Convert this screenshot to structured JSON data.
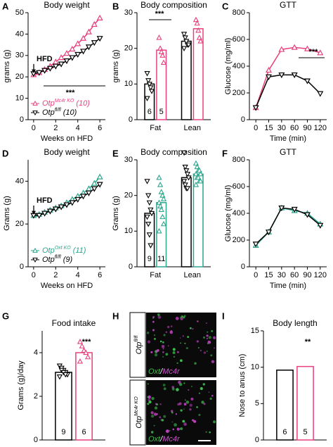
{
  "chart_data": [
    {
      "panel": "A",
      "type": "line",
      "title": "Body weight",
      "xlabel": "Weeks on HFD",
      "ylabel": "grams (g)",
      "x": [
        0,
        0.5,
        1,
        1.5,
        2,
        2.5,
        3,
        3.5,
        4,
        4.5,
        5,
        5.5,
        6
      ],
      "xlim": [
        -0.5,
        6.5
      ],
      "xticks": [
        0,
        2,
        4,
        6
      ],
      "ylim": [
        0,
        50
      ],
      "yticks": [
        0,
        10,
        20,
        30,
        40,
        50
      ],
      "series": [
        {
          "name": "Otp",
          "name_sup": "Mc4r KO",
          "name_suffix": "(10)",
          "color": "#e8407f",
          "marker": "up",
          "values": [
            21,
            22,
            23.5,
            25,
            27,
            29,
            31,
            33,
            35.5,
            38,
            41,
            44.5,
            47.5
          ]
        },
        {
          "name": "Otp",
          "name_sup": "fl/fl",
          "name_suffix": "(10)",
          "color": "#000000",
          "marker": "down",
          "values": [
            21.5,
            22,
            23,
            24,
            25,
            26,
            27.5,
            29,
            30.5,
            32,
            34,
            36,
            38
          ]
        }
      ],
      "annotations": [
        {
          "text": "HFD",
          "color": "#000000"
        },
        {
          "text": "***",
          "color": "#e8407f"
        }
      ]
    },
    {
      "panel": "B",
      "type": "bar",
      "title": "Body composition",
      "ylabel": "grams (g)",
      "categories": [
        "Fat",
        "Lean"
      ],
      "ylim": [
        0,
        30
      ],
      "yticks": [
        0,
        10,
        20,
        30
      ],
      "series": [
        {
          "color": "#000000",
          "marker": "down",
          "n": 6,
          "values": [
            10,
            22
          ],
          "points": [
            [
              13,
              11,
              10,
              9,
              8,
              6
            ],
            [
              24,
              23,
              22,
              21,
              21,
              20
            ]
          ]
        },
        {
          "color": "#e8407f",
          "marker": "up",
          "n": 5,
          "values": [
            19.5,
            25.5
          ],
          "points": [
            [
              23,
              20,
              19,
              18,
              16
            ],
            [
              28,
              27,
              25,
              23,
              22
            ]
          ]
        }
      ],
      "annotations": [
        {
          "text": "***",
          "color": "#e8407f"
        }
      ]
    },
    {
      "panel": "C",
      "type": "line",
      "title": "GTT",
      "xlabel": "Time (min)",
      "ylabel": "Glucose (mg/ml)",
      "categories": [
        "0",
        "15",
        "30",
        "60",
        "90",
        "120"
      ],
      "ylim": [
        0,
        800
      ],
      "yticks": [
        0,
        200,
        400,
        600,
        800
      ],
      "series": [
        {
          "color": "#e8407f",
          "marker": "up",
          "values": [
            90,
            370,
            525,
            540,
            530,
            500
          ]
        },
        {
          "color": "#000000",
          "marker": "down",
          "values": [
            90,
            320,
            335,
            335,
            290,
            195
          ]
        }
      ],
      "annotations": [
        {
          "text": "***",
          "color": "#e8407f"
        }
      ]
    },
    {
      "panel": "D",
      "type": "line",
      "title": "Body weight",
      "xlabel": "Weeks on HFD",
      "ylabel": "Grams (g)",
      "x": [
        0,
        0.5,
        1,
        1.5,
        2,
        2.5,
        3,
        3.5,
        4,
        4.5,
        5,
        5.5,
        6
      ],
      "xlim": [
        -0.5,
        6.5
      ],
      "xticks": [
        0,
        2,
        4,
        6
      ],
      "ylim": [
        0,
        50
      ],
      "yticks": [
        0,
        20,
        40
      ],
      "series": [
        {
          "name": "Otp",
          "name_sup": "Oxt KO",
          "name_suffix": "(11)",
          "color": "#2ca58d",
          "marker": "up",
          "values": [
            24,
            24.5,
            25.5,
            26.5,
            27.5,
            28.5,
            30,
            31.5,
            33,
            34.5,
            36.5,
            39,
            42
          ]
        },
        {
          "name": "Otp",
          "name_sup": "fl/fl",
          "name_suffix": "(9)",
          "color": "#000000",
          "marker": "down",
          "values": [
            24,
            24,
            25,
            26,
            27,
            28,
            29,
            30,
            31.5,
            33,
            34.5,
            36.5,
            38.5
          ]
        }
      ],
      "annotations": [
        {
          "text": "HFD",
          "color": "#000000"
        }
      ]
    },
    {
      "panel": "E",
      "type": "bar",
      "title": "Body composition",
      "ylabel": "Grams (g)",
      "categories": [
        "Fat",
        "Lean"
      ],
      "ylim": [
        0,
        30
      ],
      "yticks": [
        0,
        10,
        20,
        30
      ],
      "series": [
        {
          "color": "#000000",
          "marker": "down",
          "n": 9,
          "values": [
            15,
            25
          ],
          "points": [
            [
              24,
              20,
              18,
              16,
              15,
              14,
              12,
              9,
              6
            ],
            [
              32,
              28,
              27,
              26,
              25,
              24,
              23,
              22,
              22
            ]
          ]
        },
        {
          "color": "#2ca58d",
          "marker": "up",
          "n": 11,
          "values": [
            18,
            26
          ],
          "points": [
            [
              25,
              23,
              21,
              20,
              19,
              18,
              17,
              16,
              14,
              12,
              10
            ],
            [
              29,
              28,
              27,
              27,
              26,
              26,
              25,
              25,
              24,
              24,
              23
            ]
          ]
        }
      ]
    },
    {
      "panel": "F",
      "type": "line",
      "title": "GTT",
      "xlabel": "Time (min)",
      "ylabel": "Glucose (mg/ml)",
      "categories": [
        "0",
        "15",
        "30",
        "60",
        "90",
        "120"
      ],
      "ylim": [
        0,
        800
      ],
      "yticks": [
        0,
        200,
        400,
        600,
        800
      ],
      "series": [
        {
          "color": "#2ca58d",
          "marker": "up",
          "values": [
            160,
            260,
            440,
            420,
            400,
            320
          ]
        },
        {
          "color": "#000000",
          "marker": "down",
          "values": [
            170,
            260,
            440,
            430,
            390,
            310
          ]
        }
      ]
    },
    {
      "panel": "G",
      "type": "bar",
      "title": "Food intake",
      "ylabel": "Grams (g)/day",
      "ylim": [
        0,
        5
      ],
      "yticks": [
        0,
        2,
        4
      ],
      "series": [
        {
          "color": "#000000",
          "marker": "down",
          "n": 9,
          "values": [
            3.1
          ],
          "points": [
            [
              3.4,
              3.3,
              3.2,
              3.1,
              3.0,
              2.9,
              3.2,
              3.1,
              3.0
            ]
          ]
        },
        {
          "color": "#e8407f",
          "marker": "up",
          "n": 6,
          "values": [
            4.0
          ],
          "points": [
            [
              4.5,
              4.3,
              4.1,
              4.0,
              3.8,
              3.6
            ]
          ]
        }
      ],
      "annotations": [
        {
          "text": "***",
          "color": "#e8407f"
        }
      ]
    },
    {
      "panel": "I",
      "type": "bar",
      "title": "Body length",
      "ylabel": "Nose to anus (cm)",
      "ylim": [
        0,
        15
      ],
      "yticks": [
        0,
        5,
        10,
        15
      ],
      "series": [
        {
          "color": "#000000",
          "n": 6,
          "values": [
            9.6
          ]
        },
        {
          "color": "#e8407f",
          "n": 5,
          "values": [
            10.1
          ]
        }
      ],
      "annotations": [
        {
          "text": "**",
          "color": "#e8407f"
        }
      ]
    }
  ],
  "image_panel": {
    "panel": "H",
    "rows": [
      {
        "genotype": "Otp",
        "genotype_sup": "fl/fl",
        "stain": [
          "Oxt",
          "/",
          "Mc4r"
        ]
      },
      {
        "genotype": "Otp",
        "genotype_sup": "Mc4r KO",
        "stain": [
          "Oxt",
          "/",
          "Mc4r"
        ]
      }
    ]
  }
}
